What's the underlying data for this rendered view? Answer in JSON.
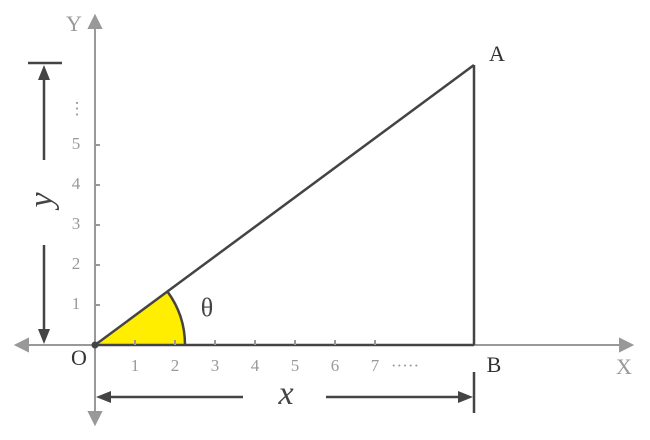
{
  "axes": {
    "x_label": "X",
    "y_label": "Y"
  },
  "points": {
    "origin": "O",
    "a": "A",
    "b": "B"
  },
  "angle_label": "θ",
  "x_ticks": [
    1,
    2,
    3,
    4,
    5,
    6,
    7
  ],
  "x_ellipsis": "·····",
  "y_ticks": [
    1,
    2,
    3,
    4,
    5
  ],
  "y_ellipsis": "⋮",
  "dimensions": {
    "x": "x",
    "y": "y"
  }
}
